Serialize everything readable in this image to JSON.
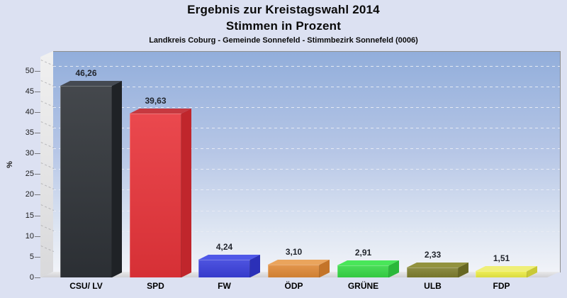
{
  "header": {
    "title_line1": "Ergebnis zur Kreistagswahl 2014",
    "title_line2": "Stimmen in Prozent",
    "subtitle": "Landkreis Coburg - Gemeinde Sonnefeld - Stimmbezirk Sonnefeld (0006)"
  },
  "chart_data": {
    "type": "bar",
    "style": "3d-column",
    "title": "Ergebnis zur Kreistagswahl 2014 / Stimmen in Prozent",
    "subtitle": "Landkreis Coburg - Gemeinde Sonnefeld - Stimmbezirk Sonnefeld (0006)",
    "categories": [
      "CSU/ LV",
      "SPD",
      "FW",
      "ÖDP",
      "GRÜNE",
      "ULB",
      "FDP"
    ],
    "values": [
      46.26,
      39.63,
      4.24,
      3.1,
      2.91,
      2.33,
      1.51
    ],
    "value_labels": [
      "46,26",
      "39,63",
      "4,24",
      "3,10",
      "2,91",
      "2,33",
      "1,51"
    ],
    "bar_colors": [
      {
        "front": "#2f3338",
        "top": "#454a52",
        "side": "#1f2226"
      },
      {
        "front": "#e8343a",
        "top": "#c63940",
        "side": "#c0262c"
      },
      {
        "front": "#3a40dc",
        "top": "#4f58e8",
        "side": "#2b30b8"
      },
      {
        "front": "#e08a38",
        "top": "#eaa45c",
        "side": "#c47428"
      },
      {
        "front": "#37d947",
        "top": "#49e659",
        "side": "#2bb83a"
      },
      {
        "front": "#7f7f2f",
        "top": "#92923f",
        "side": "#676722"
      },
      {
        "front": "#eded45",
        "top": "#efef78",
        "side": "#c9c936"
      }
    ],
    "ylabel": "%",
    "ylim": [
      0,
      50
    ],
    "yticks": [
      0,
      5,
      10,
      15,
      20,
      25,
      30,
      35,
      40,
      45,
      50
    ],
    "grid": "horizontal-dashed",
    "legend": "none"
  },
  "colors": {
    "page_bg": "#dce1f2",
    "plot_gradient_top": "#92aedb",
    "plot_gradient_bottom": "#f1f3f8",
    "wall": "#e6e6e8",
    "floor": "#dddddf",
    "plot_border": "#8e8e8e",
    "grid_dash": "#e8ecf4",
    "text": "#0a0a0a"
  }
}
